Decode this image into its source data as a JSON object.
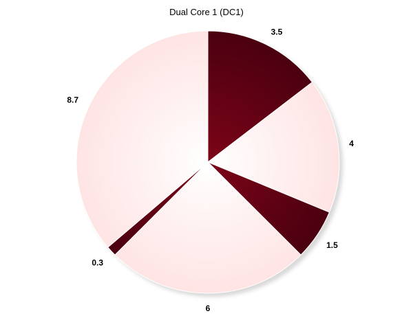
{
  "chart_data": {
    "type": "pie",
    "title": "Dual Core 1 (DC1)",
    "start_angle_deg": 0,
    "direction": "clockwise",
    "slices": [
      {
        "value": 3.5,
        "label": "3.5",
        "style": "dark"
      },
      {
        "value": 4,
        "label": "4",
        "style": "light"
      },
      {
        "value": 1.5,
        "label": "1.5",
        "style": "dark"
      },
      {
        "value": 6,
        "label": "6",
        "style": "light"
      },
      {
        "value": 0.3,
        "label": "0.3",
        "style": "dark"
      },
      {
        "value": 8.7,
        "label": "8.7",
        "style": "light"
      }
    ],
    "colors": {
      "dark_center": "#7d0418",
      "dark_edge": "#4a0010",
      "light_center": "#ffffff",
      "light_edge": "#ffe4e4",
      "shadow": "#cfcfcf"
    }
  }
}
